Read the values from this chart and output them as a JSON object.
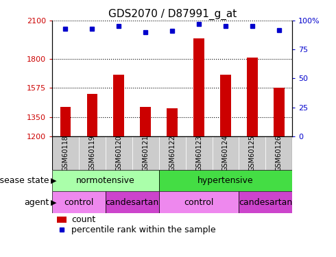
{
  "title": "GDS2070 / D87991_g_at",
  "samples": [
    "GSM60118",
    "GSM60119",
    "GSM60120",
    "GSM60121",
    "GSM60122",
    "GSM60123",
    "GSM60124",
    "GSM60125",
    "GSM60126"
  ],
  "counts": [
    1430,
    1530,
    1680,
    1430,
    1415,
    1960,
    1680,
    1810,
    1575
  ],
  "percentiles": [
    93,
    93,
    95,
    90,
    91,
    97,
    95,
    95,
    92
  ],
  "ylim_left": [
    1200,
    2100
  ],
  "ylim_right": [
    0,
    100
  ],
  "yticks_left": [
    1200,
    1350,
    1575,
    1800,
    2100
  ],
  "yticks_right": [
    0,
    25,
    50,
    75,
    100
  ],
  "bar_color": "#cc0000",
  "dot_color": "#0000cc",
  "normotensive_color": "#aaffaa",
  "hypertensive_color": "#44dd44",
  "control_color": "#ee88ee",
  "candesartan_color": "#cc44cc",
  "tick_label_color_left": "#cc0000",
  "tick_label_color_right": "#0000cc",
  "bar_width": 0.4,
  "xtick_bg_color": "#cccccc"
}
